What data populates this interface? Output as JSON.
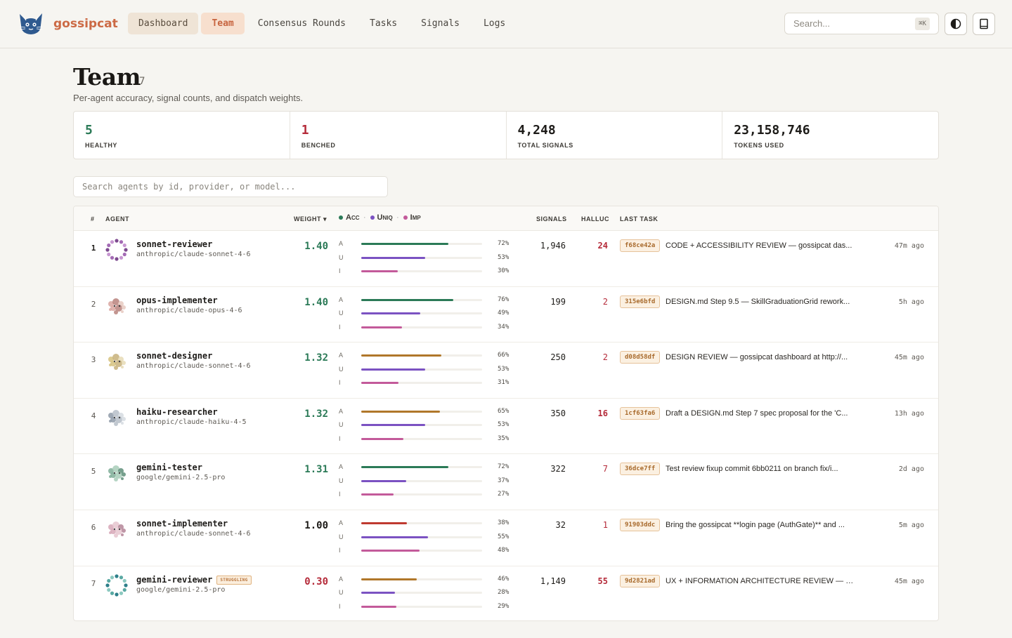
{
  "brand": {
    "name": "gossipcat"
  },
  "nav": [
    {
      "label": "Dashboard",
      "state": "active"
    },
    {
      "label": "Team",
      "state": "current"
    },
    {
      "label": "Consensus Rounds",
      "state": ""
    },
    {
      "label": "Tasks",
      "state": ""
    },
    {
      "label": "Signals",
      "state": ""
    },
    {
      "label": "Logs",
      "state": ""
    }
  ],
  "search": {
    "placeholder": "Search...",
    "shortcut": "⌘K"
  },
  "icons": {
    "theme": "contrast-icon",
    "docs": "book-icon"
  },
  "page": {
    "title": "Team",
    "count": "7",
    "subtitle": "Per-agent accuracy, signal counts, and dispatch weights."
  },
  "stats": [
    {
      "value": "5",
      "label": "HEALTHY",
      "tone": "green"
    },
    {
      "value": "1",
      "label": "BENCHED",
      "tone": "red"
    },
    {
      "value": "4,248",
      "label": "TOTAL SIGNALS",
      "tone": ""
    },
    {
      "value": "23,158,746",
      "label": "TOKENS USED",
      "tone": ""
    }
  ],
  "filter": {
    "placeholder": "Search agents by id, provider, or model..."
  },
  "table": {
    "headers": {
      "rank": "#",
      "agent": "AGENT",
      "weight": "WEIGHT ▾",
      "signals": "SIGNALS",
      "halluc": "HALLUC",
      "last_task": "LAST TASK"
    },
    "legend": [
      {
        "label": "Acc",
        "color": "#2b7a57"
      },
      {
        "label": "Uniq",
        "color": "#7b52c2"
      },
      {
        "label": "Imp",
        "color": "#c35a9a"
      }
    ],
    "metric_letters": [
      "A",
      "U",
      "I"
    ],
    "colors": {
      "acc_good": "#2b7a57",
      "acc_mid": "#b0772a",
      "acc_bad": "#bf3a30",
      "uniq": "#7b52c2",
      "imp": "#c35a9a",
      "weight_good": "#2b7a57",
      "weight_neutral": "#1d1b18",
      "weight_bad": "#b52b3a"
    },
    "rows": [
      {
        "rank": "1",
        "name": "sonnet-reviewer",
        "model": "anthropic/claude-sonnet-4-6",
        "badge": "",
        "weight": "1.40",
        "weight_tone": "good",
        "acc": 72,
        "acc_tone": "good",
        "uniq": 53,
        "imp": 30,
        "acc_label": "72%",
        "uniq_label": "53%",
        "imp_label": "30%",
        "signals": "1,946",
        "halluc": "24",
        "halluc_heavy": true,
        "hash": "f68ce42a",
        "task": "CODE + ACCESSIBILITY REVIEW — gossipcat das...",
        "ago": "47m ago",
        "avatar": "ring"
      },
      {
        "rank": "2",
        "name": "opus-implementer",
        "model": "anthropic/claude-opus-4-6",
        "badge": "",
        "weight": "1.40",
        "weight_tone": "good",
        "acc": 76,
        "acc_tone": "good",
        "uniq": 49,
        "imp": 34,
        "acc_label": "76%",
        "uniq_label": "49%",
        "imp_label": "34%",
        "signals": "199",
        "halluc": "2",
        "halluc_heavy": false,
        "hash": "315e6bfd",
        "task": "DESIGN.md Step 9.5 — SkillGraduationGrid rework...",
        "ago": "5h ago",
        "avatar": "cat1"
      },
      {
        "rank": "3",
        "name": "sonnet-designer",
        "model": "anthropic/claude-sonnet-4-6",
        "badge": "",
        "weight": "1.32",
        "weight_tone": "good",
        "acc": 66,
        "acc_tone": "mid",
        "uniq": 53,
        "imp": 31,
        "acc_label": "66%",
        "uniq_label": "53%",
        "imp_label": "31%",
        "signals": "250",
        "halluc": "2",
        "halluc_heavy": false,
        "hash": "d08d58df",
        "task": "DESIGN REVIEW — gossipcat dashboard at http://...",
        "ago": "45m ago",
        "avatar": "cat2"
      },
      {
        "rank": "4",
        "name": "haiku-researcher",
        "model": "anthropic/claude-haiku-4-5",
        "badge": "",
        "weight": "1.32",
        "weight_tone": "good",
        "acc": 65,
        "acc_tone": "mid",
        "uniq": 53,
        "imp": 35,
        "acc_label": "65%",
        "uniq_label": "53%",
        "imp_label": "35%",
        "signals": "350",
        "halluc": "16",
        "halluc_heavy": true,
        "hash": "1cf63fa6",
        "task": "Draft a DESIGN.md Step 7 spec proposal for the 'C...",
        "ago": "13h ago",
        "avatar": "cat3"
      },
      {
        "rank": "5",
        "name": "gemini-tester",
        "model": "google/gemini-2.5-pro",
        "badge": "",
        "weight": "1.31",
        "weight_tone": "good",
        "acc": 72,
        "acc_tone": "good",
        "uniq": 37,
        "imp": 27,
        "acc_label": "72%",
        "uniq_label": "37%",
        "imp_label": "27%",
        "signals": "322",
        "halluc": "7",
        "halluc_heavy": false,
        "hash": "36dce7ff",
        "task": "Test review fixup commit 6bb0211 on branch fix/i...",
        "ago": "2d ago",
        "avatar": "cat4"
      },
      {
        "rank": "6",
        "name": "sonnet-implementer",
        "model": "anthropic/claude-sonnet-4-6",
        "badge": "",
        "weight": "1.00",
        "weight_tone": "neutral",
        "acc": 38,
        "acc_tone": "bad",
        "uniq": 55,
        "imp": 48,
        "acc_label": "38%",
        "uniq_label": "55%",
        "imp_label": "48%",
        "signals": "32",
        "halluc": "1",
        "halluc_heavy": false,
        "hash": "91903ddc",
        "task": "Bring the gossipcat **login page (AuthGate)** and ...",
        "ago": "5m ago",
        "avatar": "cat5"
      },
      {
        "rank": "7",
        "name": "gemini-reviewer",
        "model": "google/gemini-2.5-pro",
        "badge": "STRUGGLING",
        "weight": "0.30",
        "weight_tone": "bad",
        "acc": 46,
        "acc_tone": "mid",
        "uniq": 28,
        "imp": 29,
        "acc_label": "46%",
        "uniq_label": "28%",
        "imp_label": "29%",
        "signals": "1,149",
        "halluc": "55",
        "halluc_heavy": true,
        "hash": "9d2821ad",
        "task": "UX + INFORMATION ARCHITECTURE REVIEW — g...",
        "ago": "45m ago",
        "avatar": "ring-teal"
      }
    ]
  }
}
